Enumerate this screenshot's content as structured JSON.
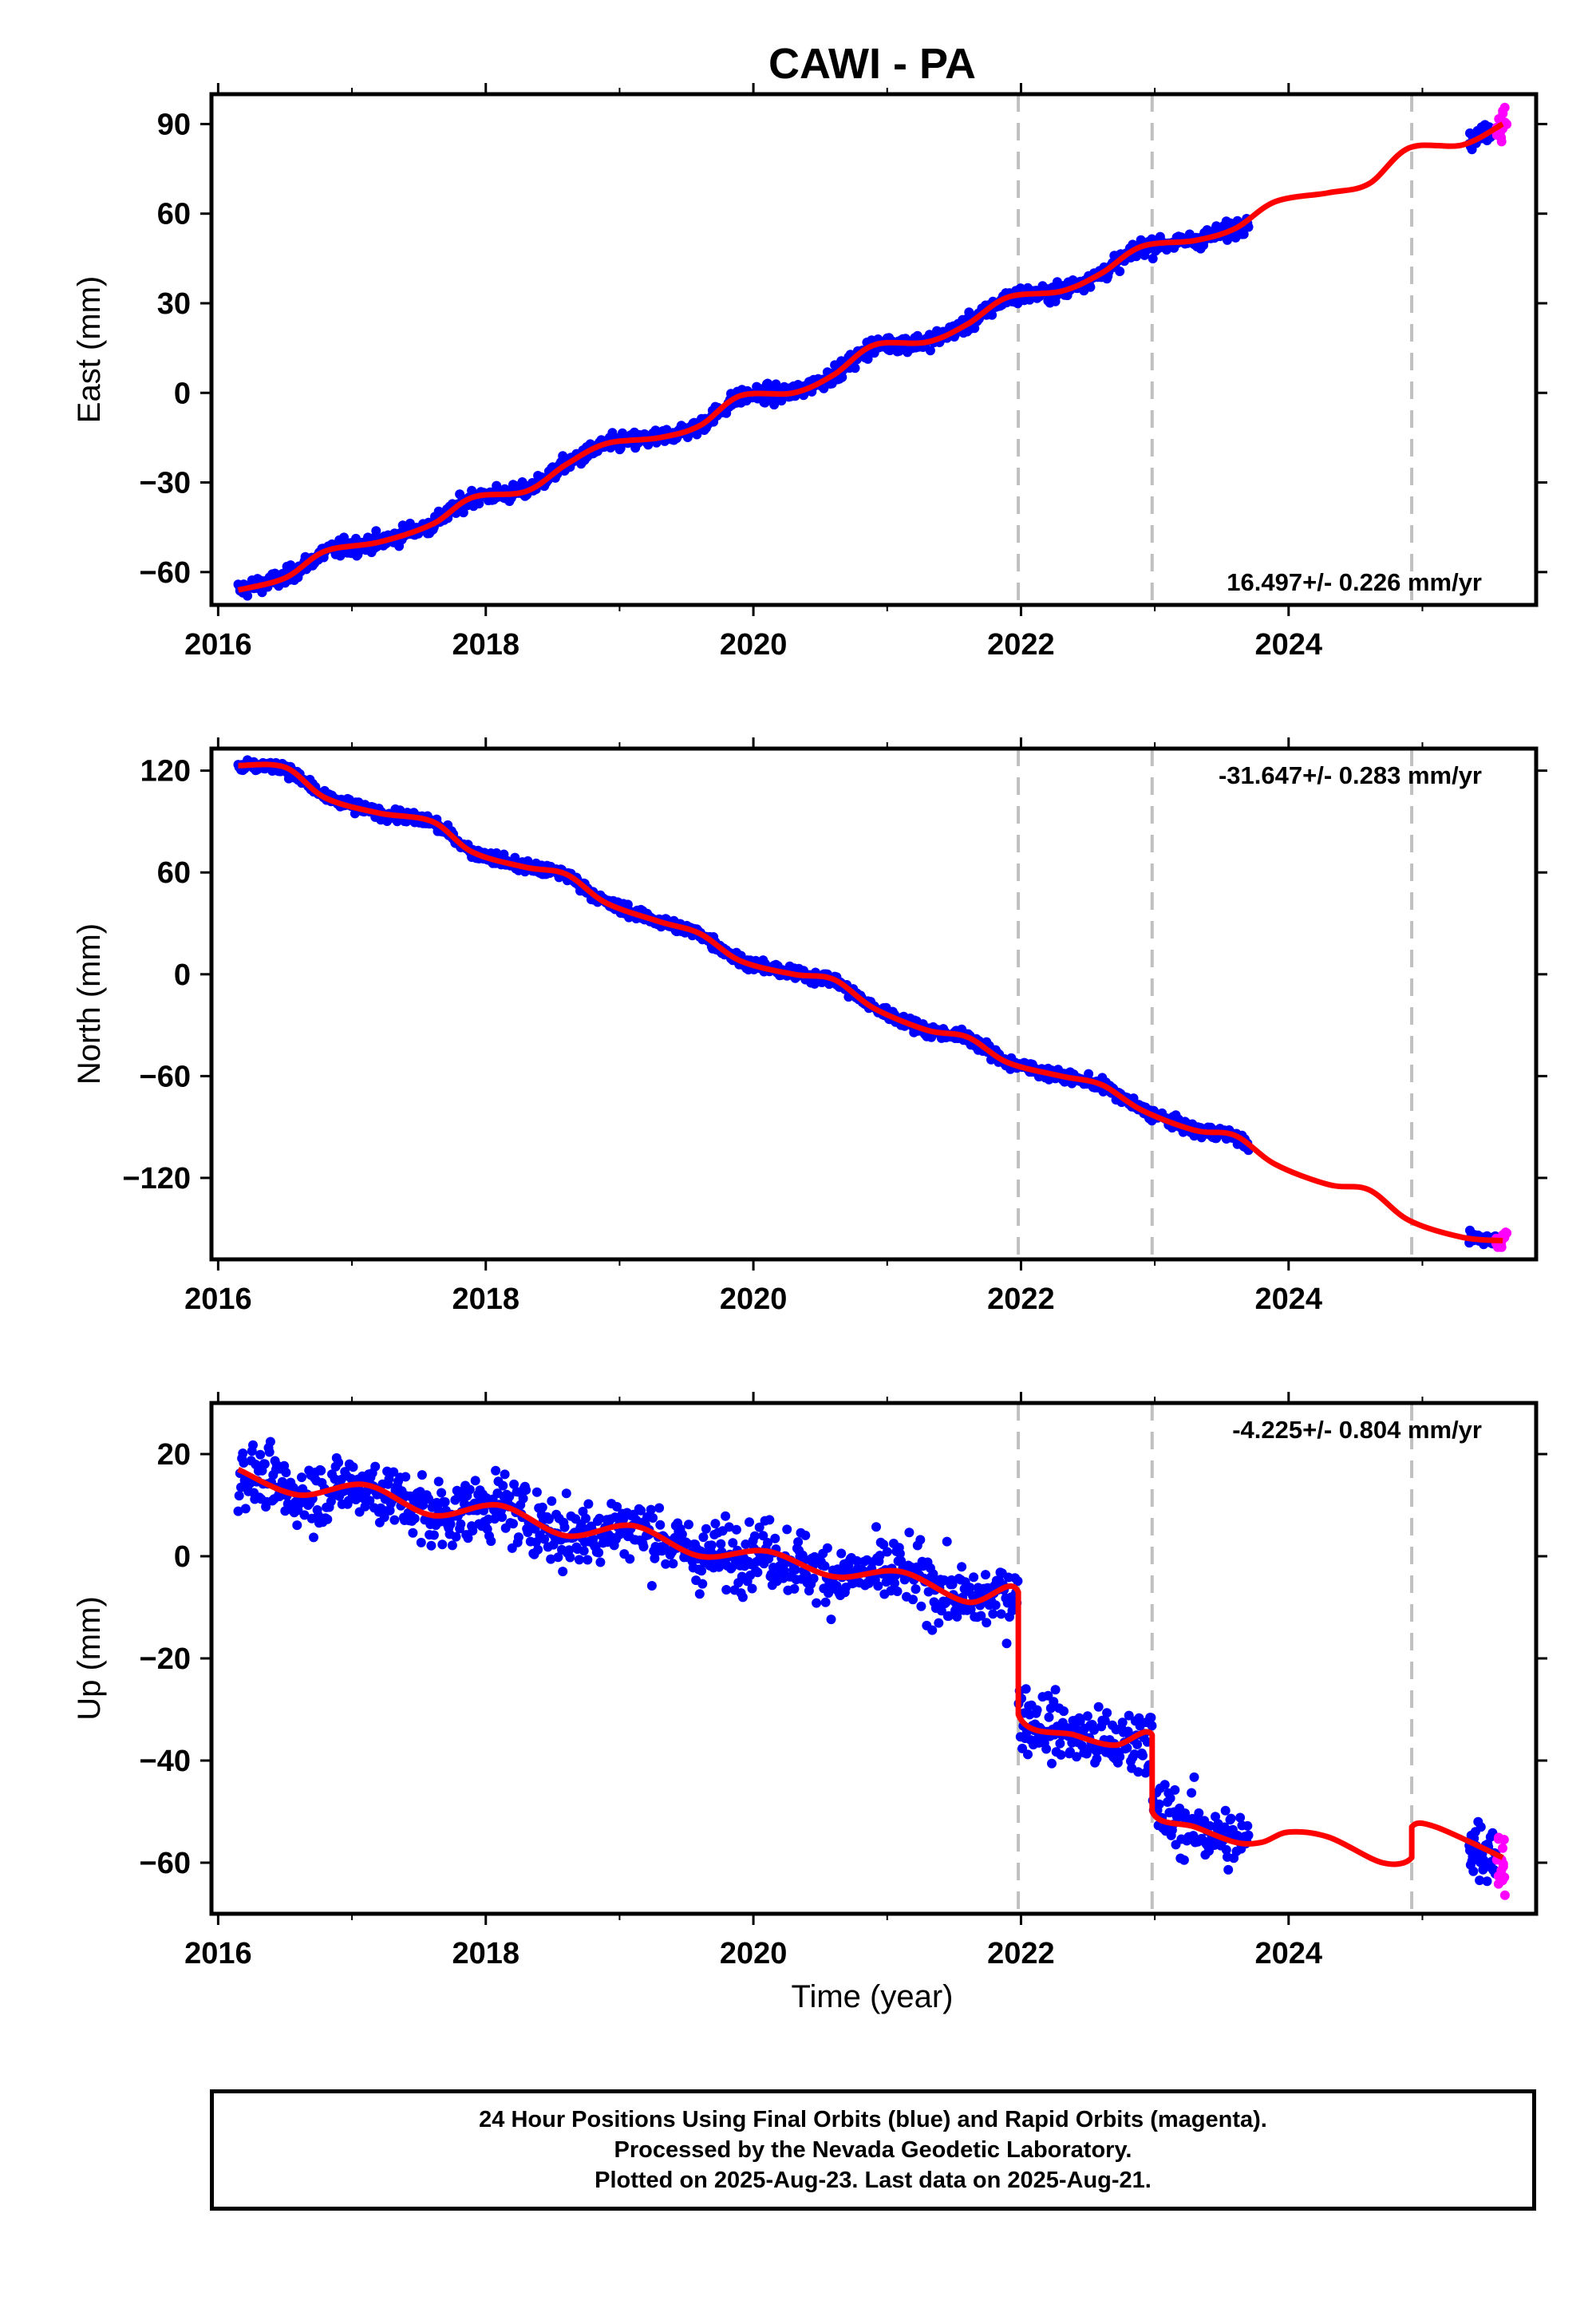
{
  "title": "CAWI - PA",
  "xlabel": "Time (year)",
  "footer": [
    "24 Hour Positions Using Final Orbits (blue) and Rapid Orbits (magenta).",
    "Processed by the Nevada Geodetic Laboratory.",
    "Plotted on 2025-Aug-23. Last data on 2025-Aug-21."
  ],
  "colors": {
    "final": "#0000ff",
    "rapid": "#ff00ff",
    "model": "#ff0000",
    "event": "#c0c0c0"
  },
  "chart_data": [
    {
      "type": "scatter",
      "component": "east",
      "ylabel": "East (mm)",
      "rate_label": "16.497+/- 0.226 mm/yr",
      "xlim": [
        2015.95,
        2025.85
      ],
      "ylim": [
        -71,
        100
      ],
      "xticks": [
        "2016",
        "2018",
        "2020",
        "2022",
        "2024"
      ],
      "yticks": [
        "-60",
        "-30",
        "0",
        "30",
        "60",
        "90"
      ],
      "event_lines": [
        2021.98,
        2022.98,
        2024.92
      ],
      "model": {
        "x": [
          2016.15,
          2016.5,
          2016.8,
          2017.2,
          2017.6,
          2017.9,
          2018.3,
          2018.6,
          2018.9,
          2019.3,
          2019.6,
          2019.9,
          2020.3,
          2020.6,
          2020.9,
          2021.3,
          2021.6,
          2021.9,
          2022.3,
          2022.6,
          2022.9,
          2023.3,
          2023.6,
          2023.9,
          2024.3,
          2024.6,
          2024.9,
          2025.3,
          2025.6
        ],
        "y": [
          -66,
          -62,
          -53,
          -50,
          -44,
          -35,
          -33,
          -24,
          -17,
          -15,
          -11,
          -1,
          0,
          6,
          16,
          17,
          23,
          32,
          34,
          40,
          49,
          51,
          55,
          64,
          67,
          70,
          82,
          83,
          90
        ]
      },
      "final": {
        "x_range": [
          2016.15,
          2023.7
        ],
        "extra_x_range": [
          2025.35,
          2025.55
        ],
        "noise_mm": 2.0
      },
      "rapid": {
        "x_range": [
          2025.55,
          2025.63
        ],
        "y": [
          84,
          96
        ]
      }
    },
    {
      "type": "scatter",
      "component": "north",
      "ylabel": "North (mm)",
      "rate_label": "-31.647+/- 0.283 mm/yr",
      "xlim": [
        2015.95,
        2025.85
      ],
      "ylim": [
        -168,
        133
      ],
      "xticks": [
        "2016",
        "2018",
        "2020",
        "2022",
        "2024"
      ],
      "yticks": [
        "-120",
        "-60",
        "0",
        "60",
        "120"
      ],
      "event_lines": [
        2021.98,
        2022.98,
        2024.92
      ],
      "model": {
        "x": [
          2016.15,
          2016.5,
          2016.8,
          2017.2,
          2017.6,
          2017.9,
          2018.3,
          2018.6,
          2018.9,
          2019.3,
          2019.6,
          2019.9,
          2020.3,
          2020.6,
          2020.9,
          2021.3,
          2021.6,
          2021.9,
          2022.3,
          2022.6,
          2022.9,
          2023.3,
          2023.6,
          2023.9,
          2024.3,
          2024.6,
          2024.9,
          2025.3,
          2025.6
        ],
        "y": [
          123,
          122,
          104,
          95,
          90,
          72,
          63,
          59,
          42,
          31,
          24,
          8,
          0,
          -3,
          -20,
          -33,
          -37,
          -52,
          -60,
          -65,
          -80,
          -92,
          -95,
          -112,
          -124,
          -127,
          -145,
          -155,
          -157
        ]
      },
      "final": {
        "x_range": [
          2016.15,
          2023.7
        ],
        "extra_x_range": [
          2025.35,
          2025.55
        ],
        "noise_mm": 2.5
      },
      "rapid": {
        "x_range": [
          2025.55,
          2025.63
        ],
        "y": [
          -161,
          -152
        ]
      }
    },
    {
      "type": "scatter",
      "component": "up",
      "ylabel": "Up (mm)",
      "rate_label": "-4.225+/- 0.804 mm/yr",
      "xlim": [
        2015.95,
        2025.85
      ],
      "ylim": [
        -70,
        30
      ],
      "xticks": [
        "2016",
        "2018",
        "2020",
        "2022",
        "2024"
      ],
      "yticks": [
        "-60",
        "-40",
        "-20",
        "0",
        "20"
      ],
      "event_lines": [
        2021.98,
        2022.98,
        2024.92
      ],
      "model": {
        "x": [
          2016.15,
          2016.6,
          2017.1,
          2017.6,
          2018.1,
          2018.6,
          2019.1,
          2019.6,
          2020.1,
          2020.6,
          2021.1,
          2021.6,
          2021.98,
          2021.98,
          2022.4,
          2022.7,
          2022.98,
          2022.98,
          2023.3,
          2023.6,
          2023.8,
          2024.0,
          2024.3,
          2024.7,
          2024.92,
          2024.92,
          2025.1,
          2025.6
        ],
        "y": [
          17,
          12,
          14,
          8,
          10,
          4,
          6,
          0,
          1,
          -4,
          -3,
          -9,
          -7,
          -31,
          -35,
          -37,
          -35,
          -50,
          -53,
          -56,
          -56,
          -54,
          -55,
          -60,
          -59,
          -53,
          -53,
          -59
        ]
      },
      "final": {
        "x_range": [
          2016.15,
          2023.7
        ],
        "extra_x_range": [
          2025.35,
          2025.55
        ],
        "noise_mm": 4.5
      },
      "rapid": {
        "x_range": [
          2025.55,
          2025.63
        ],
        "y": [
          -68,
          -55
        ]
      }
    }
  ]
}
